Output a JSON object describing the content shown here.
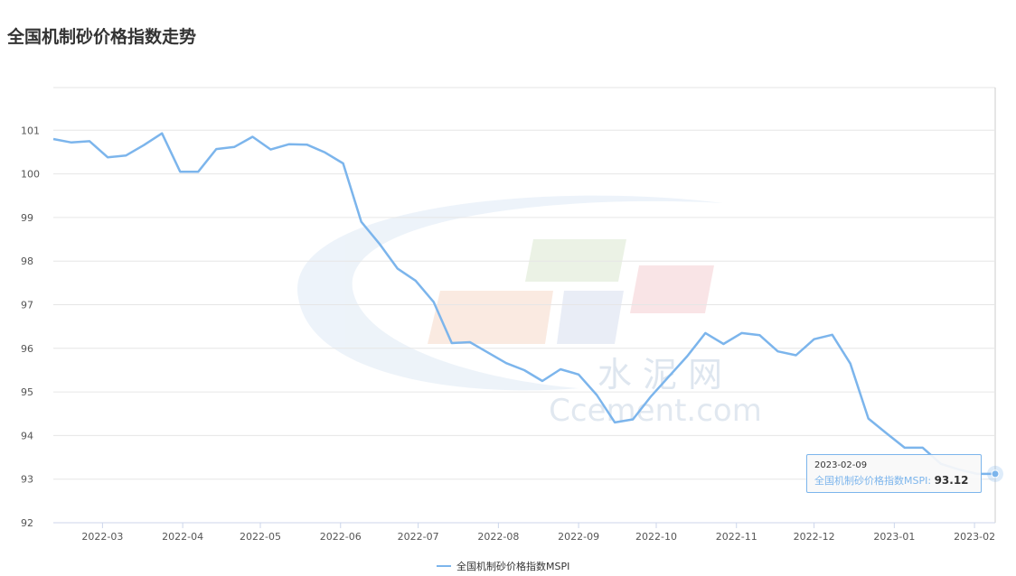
{
  "title": "全国机制砂价格指数走势",
  "watermark": {
    "cn": "水 泥 网",
    "en": "Ccement.com"
  },
  "colors": {
    "line": "#7cb5ec",
    "grid": "#e6e6e6"
  },
  "tooltip": {
    "date": "2023-02-09",
    "series": "全国机制砂价格指数MSPI",
    "value": "93.12"
  },
  "chart_data": {
    "type": "line",
    "ylim": [
      92,
      101
    ],
    "y_ticks": [
      "101",
      "100",
      "99",
      "98",
      "97",
      "96",
      "95",
      "94",
      "93",
      "92"
    ],
    "x_tick_labels": [
      "2022-03",
      "2022-04",
      "2022-05",
      "2022-06",
      "2022-07",
      "2022-08",
      "2022-09",
      "2022-10",
      "2022-11",
      "2022-12",
      "2023-01",
      "2023-02"
    ],
    "x_range": [
      "2022-02-10",
      "2023-02-09"
    ],
    "grid": true,
    "legend_position": "bottom-center",
    "series": [
      {
        "name": "全国机制砂价格指数MSPI",
        "x": [
          "2022-02-10",
          "2022-02-17",
          "2022-02-24",
          "2022-03-03",
          "2022-03-10",
          "2022-03-17",
          "2022-03-24",
          "2022-03-31",
          "2022-04-07",
          "2022-04-14",
          "2022-04-21",
          "2022-04-28",
          "2022-05-05",
          "2022-05-12",
          "2022-05-19",
          "2022-05-26",
          "2022-06-02",
          "2022-06-09",
          "2022-06-16",
          "2022-06-23",
          "2022-06-30",
          "2022-07-07",
          "2022-07-14",
          "2022-07-21",
          "2022-07-28",
          "2022-08-04",
          "2022-08-11",
          "2022-08-18",
          "2022-08-25",
          "2022-09-01",
          "2022-09-08",
          "2022-09-15",
          "2022-09-22",
          "2022-09-29",
          "2022-10-06",
          "2022-10-13",
          "2022-10-20",
          "2022-10-27",
          "2022-11-03",
          "2022-11-10",
          "2022-11-17",
          "2022-11-24",
          "2022-12-01",
          "2022-12-08",
          "2022-12-15",
          "2022-12-22",
          "2022-12-29",
          "2023-01-05",
          "2023-01-12",
          "2023-01-19",
          "2023-01-26",
          "2023-02-02",
          "2023-02-09"
        ],
        "values": [
          100.8,
          100.72,
          100.75,
          100.38,
          100.42,
          100.66,
          100.93,
          100.05,
          100.05,
          100.57,
          100.62,
          100.85,
          100.56,
          100.68,
          100.67,
          100.49,
          100.24,
          98.9,
          98.4,
          97.83,
          97.55,
          97.06,
          96.12,
          96.14,
          95.9,
          95.66,
          95.5,
          95.25,
          95.52,
          95.4,
          94.93,
          94.3,
          94.37,
          94.9,
          95.36,
          95.82,
          96.35,
          96.1,
          96.35,
          96.3,
          95.93,
          95.84,
          96.21,
          96.31,
          95.65,
          94.39,
          94.05,
          93.72,
          93.72,
          93.35,
          93.22,
          93.12,
          93.12
        ]
      }
    ]
  }
}
